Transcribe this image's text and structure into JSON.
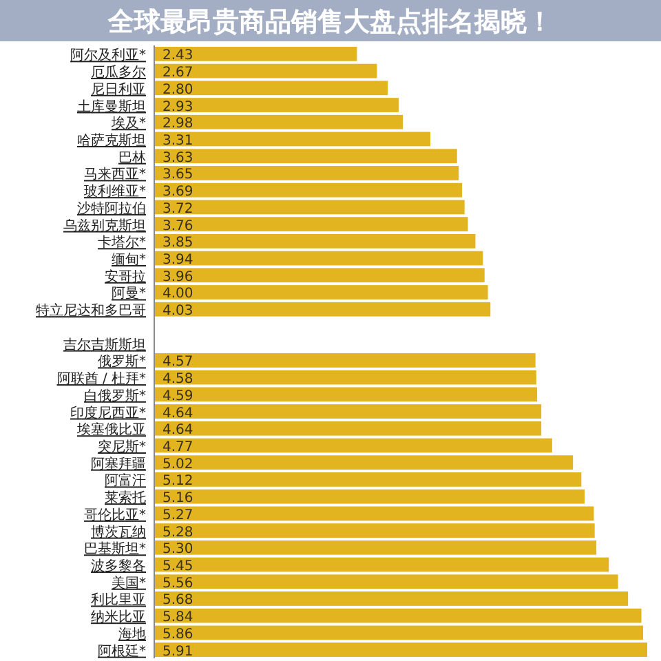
{
  "chart_data": {
    "type": "bar",
    "orientation": "horizontal",
    "title": "全球最昂贵商品销售大盘点排名揭晓！",
    "color": "#e2b41f",
    "categories": [
      "阿尔及利亚*",
      "厄瓜多尔",
      "尼日利亚",
      "土库曼斯坦",
      "埃及*",
      "哈萨克斯坦",
      "巴林",
      "马来西亚*",
      "玻利维亚*",
      "沙特阿拉伯",
      "乌兹别克斯坦",
      "卡塔尔*",
      "缅甸*",
      "安哥拉",
      "阿曼*",
      "特立尼达和多巴哥",
      null,
      "吉尔吉斯斯坦",
      "俄罗斯*",
      "阿联酋 / 杜拜*",
      "白俄罗斯*",
      "印度尼西亚*",
      "埃塞俄比亚",
      "突尼斯*",
      "阿塞拜疆",
      "阿富汗",
      "莱索托",
      "哥伦比亚*",
      "博茨瓦纳",
      "巴基斯坦*",
      "波多黎各",
      "美国*",
      "利比里亚",
      "纳米比亚",
      "海地",
      "阿根廷*"
    ],
    "values": [
      2.43,
      2.67,
      2.8,
      2.93,
      2.98,
      3.31,
      3.63,
      3.65,
      3.69,
      3.72,
      3.76,
      3.85,
      3.94,
      3.96,
      4.0,
      4.03,
      null,
      null,
      4.57,
      4.58,
      4.59,
      4.64,
      4.64,
      4.77,
      5.02,
      5.12,
      5.16,
      5.27,
      5.28,
      5.3,
      5.45,
      5.56,
      5.68,
      5.84,
      5.86,
      5.91
    ],
    "value_labels": [
      "2.43",
      "2.67",
      "2.80",
      "2.93",
      "2.98",
      "3.31",
      "3.63",
      "3.65",
      "3.69",
      "3.72",
      "3.76",
      "3.85",
      "3.94",
      "3.96",
      "4.00",
      "4.03",
      null,
      null,
      "4.57",
      "4.58",
      "4.59",
      "4.64",
      "4.64",
      "4.77",
      "5.02",
      "5.12",
      "5.16",
      "5.27",
      "5.28",
      "5.30",
      "5.45",
      "5.56",
      "5.68",
      "5.84",
      "5.86",
      "5.91"
    ]
  }
}
